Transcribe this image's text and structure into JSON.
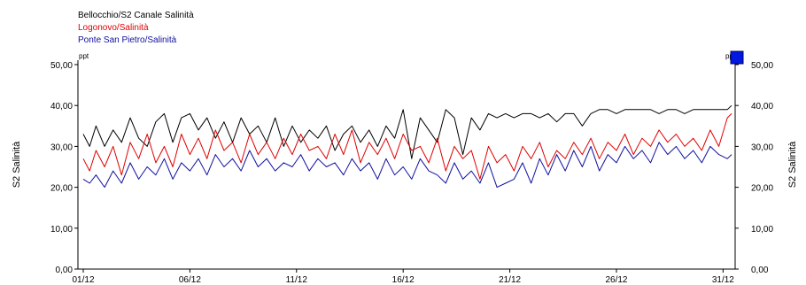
{
  "chart_data": {
    "type": "line",
    "title": "",
    "ylabel_left": "S2 Salinità",
    "ylabel_right": "S2 Salinità",
    "unit_left": "ppt",
    "unit_right": "ppt",
    "ylim": [
      0,
      50
    ],
    "xlim": [
      1,
      31.4
    ],
    "y_ticks": [
      {
        "v": 0,
        "label": "0,00"
      },
      {
        "v": 10,
        "label": "10,00"
      },
      {
        "v": 20,
        "label": "20,00"
      },
      {
        "v": 30,
        "label": "30,00"
      },
      {
        "v": 40,
        "label": "40,00"
      },
      {
        "v": 50,
        "label": "50,00"
      }
    ],
    "x_ticks": [
      {
        "v": 1,
        "label": "01/12"
      },
      {
        "v": 6,
        "label": "06/12"
      },
      {
        "v": 11,
        "label": "11/12"
      },
      {
        "v": 16,
        "label": "16/12"
      },
      {
        "v": 21,
        "label": "21/12"
      },
      {
        "v": 26,
        "label": "26/12"
      },
      {
        "v": 31,
        "label": "31/12"
      }
    ],
    "grid": false,
    "legend_position": "top-left",
    "series": [
      {
        "name": "Bellocchio/S2 Canale Salinità",
        "color": "#000000",
        "x": [
          1.0,
          1.3,
          1.6,
          2.0,
          2.4,
          2.8,
          3.2,
          3.6,
          4.0,
          4.4,
          4.8,
          5.2,
          5.6,
          6.0,
          6.4,
          6.8,
          7.2,
          7.6,
          8.0,
          8.4,
          8.8,
          9.2,
          9.6,
          10.0,
          10.4,
          10.8,
          11.2,
          11.6,
          12.0,
          12.4,
          12.8,
          13.2,
          13.6,
          14.0,
          14.4,
          14.8,
          15.2,
          15.6,
          16.0,
          16.4,
          16.8,
          17.2,
          17.6,
          18.0,
          18.4,
          18.8,
          19.2,
          19.6,
          20.0,
          20.4,
          20.8,
          21.2,
          21.6,
          22.0,
          22.4,
          22.8,
          23.2,
          23.6,
          24.0,
          24.4,
          24.8,
          25.2,
          25.6,
          26.0,
          26.4,
          26.8,
          27.2,
          27.6,
          28.0,
          28.4,
          28.8,
          29.2,
          29.6,
          30.0,
          30.4,
          30.8,
          31.2,
          31.4
        ],
        "y": [
          33,
          30,
          35,
          30,
          34,
          31,
          37,
          32,
          30,
          36,
          38,
          31,
          37,
          38,
          34,
          37,
          32,
          36,
          31,
          37,
          33,
          35,
          31,
          37,
          30,
          35,
          31,
          34,
          32,
          35,
          29,
          33,
          35,
          31,
          34,
          30,
          35,
          32,
          39,
          27,
          37,
          34,
          31,
          39,
          37,
          28,
          37,
          34,
          38,
          37,
          38,
          37,
          38,
          38,
          37,
          38,
          36,
          38,
          38,
          35,
          38,
          39,
          39,
          38,
          39,
          39,
          39,
          39,
          38,
          39,
          39,
          38,
          39,
          39,
          39,
          39,
          39,
          40
        ]
      },
      {
        "name": "Logonovo/Salinità",
        "color": "#e00000",
        "x": [
          1.0,
          1.3,
          1.6,
          2.0,
          2.4,
          2.8,
          3.2,
          3.6,
          4.0,
          4.4,
          4.8,
          5.2,
          5.6,
          6.0,
          6.4,
          6.8,
          7.2,
          7.6,
          8.0,
          8.4,
          8.8,
          9.2,
          9.6,
          10.0,
          10.4,
          10.8,
          11.2,
          11.6,
          12.0,
          12.4,
          12.8,
          13.2,
          13.6,
          14.0,
          14.4,
          14.8,
          15.2,
          15.6,
          16.0,
          16.4,
          16.8,
          17.2,
          17.6,
          18.0,
          18.4,
          18.8,
          19.2,
          19.6,
          20.0,
          20.4,
          20.8,
          21.2,
          21.6,
          22.0,
          22.4,
          22.8,
          23.2,
          23.6,
          24.0,
          24.4,
          24.8,
          25.2,
          25.6,
          26.0,
          26.4,
          26.8,
          27.2,
          27.6,
          28.0,
          28.4,
          28.8,
          29.2,
          29.6,
          30.0,
          30.4,
          30.8,
          31.2,
          31.4
        ],
        "y": [
          27,
          24,
          29,
          25,
          30,
          23,
          31,
          27,
          33,
          26,
          30,
          25,
          33,
          28,
          32,
          27,
          34,
          29,
          31,
          26,
          33,
          28,
          31,
          27,
          32,
          28,
          33,
          29,
          30,
          27,
          33,
          28,
          34,
          26,
          31,
          28,
          32,
          27,
          33,
          29,
          30,
          26,
          32,
          24,
          30,
          27,
          29,
          22,
          30,
          26,
          28,
          24,
          30,
          27,
          31,
          25,
          29,
          27,
          31,
          28,
          32,
          27,
          31,
          29,
          33,
          28,
          32,
          30,
          34,
          31,
          33,
          30,
          32,
          29,
          34,
          30,
          37,
          38
        ]
      },
      {
        "name": "Ponte San Pietro/Salinità",
        "color": "#1010a0",
        "x": [
          1.0,
          1.3,
          1.6,
          2.0,
          2.4,
          2.8,
          3.2,
          3.6,
          4.0,
          4.4,
          4.8,
          5.2,
          5.6,
          6.0,
          6.4,
          6.8,
          7.2,
          7.6,
          8.0,
          8.4,
          8.8,
          9.2,
          9.6,
          10.0,
          10.4,
          10.8,
          11.2,
          11.6,
          12.0,
          12.4,
          12.8,
          13.2,
          13.6,
          14.0,
          14.4,
          14.8,
          15.2,
          15.6,
          16.0,
          16.4,
          16.8,
          17.2,
          17.6,
          18.0,
          18.4,
          18.8,
          19.2,
          19.6,
          20.0,
          20.4,
          20.8,
          21.2,
          21.6,
          22.0,
          22.4,
          22.8,
          23.2,
          23.6,
          24.0,
          24.4,
          24.8,
          25.2,
          25.6,
          26.0,
          26.4,
          26.8,
          27.2,
          27.6,
          28.0,
          28.4,
          28.8,
          29.2,
          29.6,
          30.0,
          30.4,
          30.8,
          31.2,
          31.4
        ],
        "y": [
          22,
          21,
          23,
          20,
          24,
          21,
          26,
          22,
          25,
          23,
          27,
          22,
          26,
          24,
          27,
          23,
          28,
          25,
          27,
          24,
          29,
          25,
          27,
          24,
          26,
          25,
          28,
          24,
          27,
          25,
          26,
          23,
          27,
          24,
          26,
          22,
          27,
          23,
          25,
          22,
          27,
          24,
          23,
          21,
          26,
          22,
          24,
          21,
          26,
          20,
          21,
          22,
          26,
          21,
          27,
          23,
          28,
          24,
          29,
          25,
          30,
          24,
          28,
          26,
          30,
          27,
          29,
          26,
          31,
          28,
          30,
          27,
          29,
          26,
          30,
          28,
          27,
          28
        ]
      }
    ]
  }
}
